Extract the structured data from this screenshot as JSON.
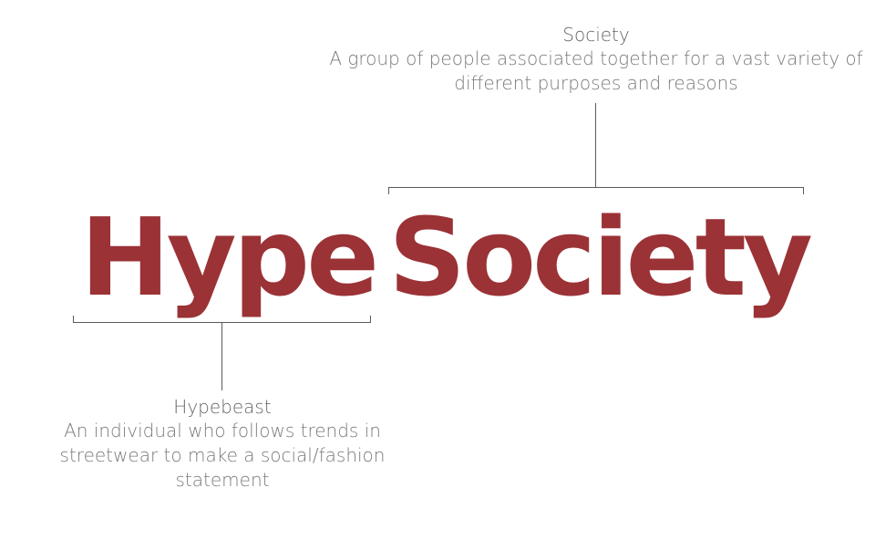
{
  "title": {
    "word1": "Hype",
    "word2": "Society",
    "color": "#9b3236"
  },
  "annotations": {
    "society": {
      "term": "Society",
      "definition": "A group of people associated together for a vast variety of different purposes and reasons"
    },
    "hypebeast": {
      "term": "Hypebeast",
      "definition": "An individual who follows trends in streetwear to make a social/fashion statement"
    }
  },
  "colors": {
    "annotation_text": "#6b6b6b",
    "bracket_line": "#5a5a5a",
    "background": "#ffffff"
  }
}
